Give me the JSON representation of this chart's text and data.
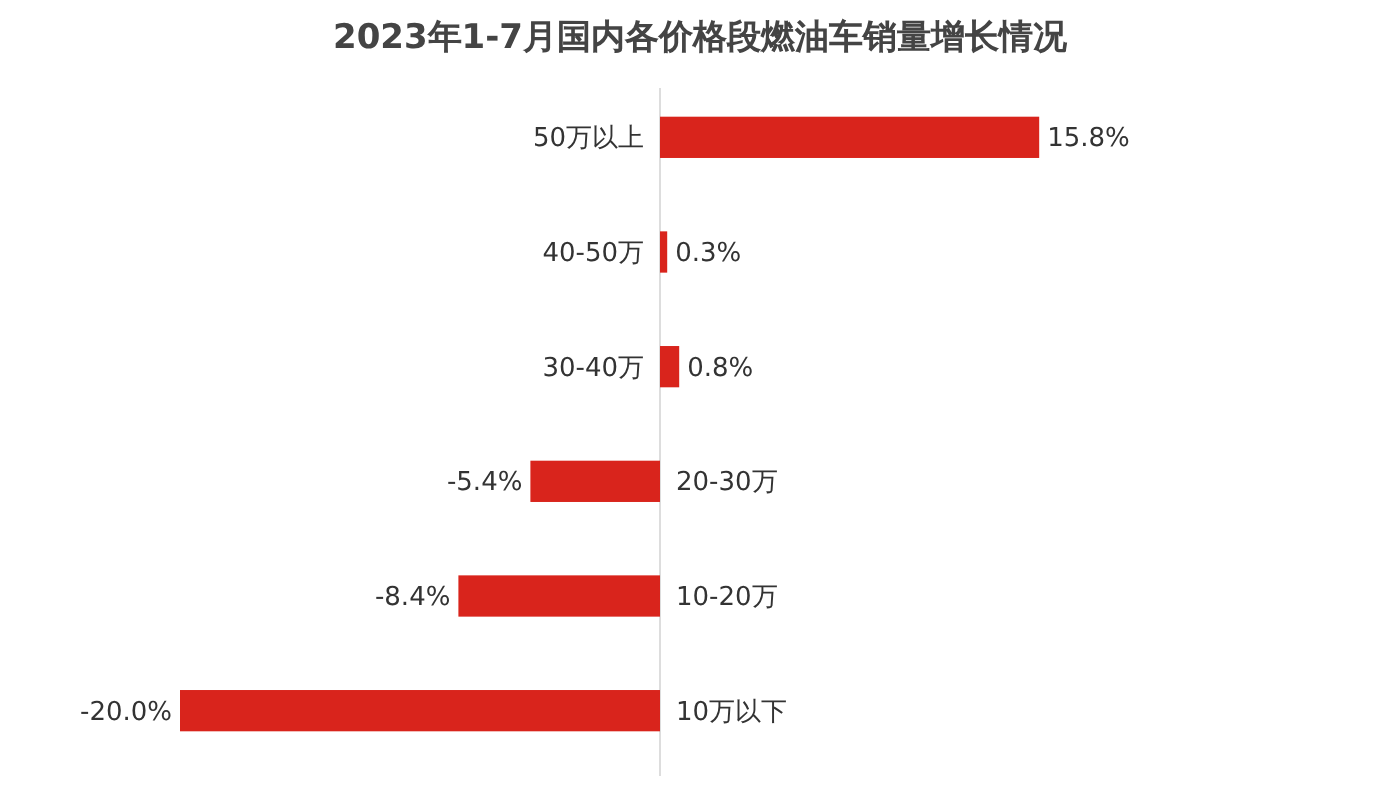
{
  "chart_data": {
    "type": "bar",
    "orientation": "horizontal",
    "title": "2023年1-7月国内各价格段燃油车销量增长情况",
    "categories": [
      "50万以上",
      "40-50万",
      "30-40万",
      "20-30万",
      "10-20万",
      "10万以下"
    ],
    "values": [
      15.8,
      0.3,
      0.8,
      -5.4,
      -8.4,
      -20.0
    ],
    "value_labels": [
      "15.8%",
      "0.3%",
      "0.8%",
      "-5.4%",
      "-8.4%",
      "-20.0%"
    ],
    "color": "#d9241c"
  }
}
